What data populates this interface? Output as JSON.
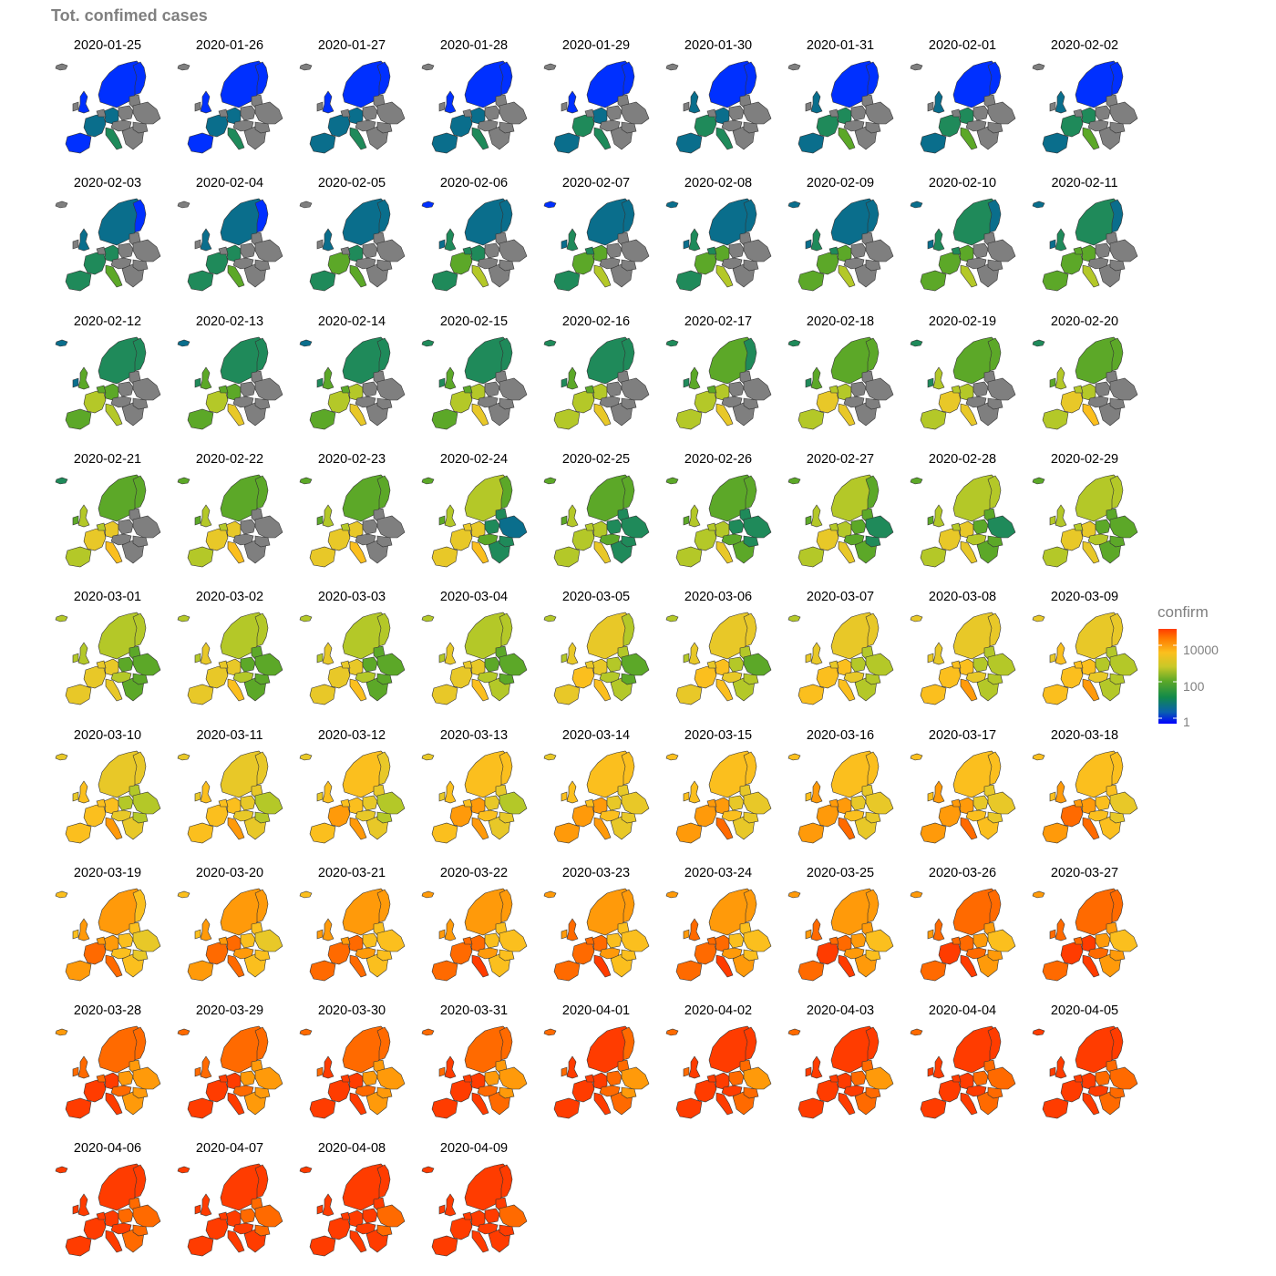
{
  "title": "Tot. confimed cases",
  "legend": {
    "title": "confirm",
    "ticks": [
      "10000",
      "100",
      "1"
    ],
    "tick_values": [
      10000,
      100,
      1
    ],
    "scale": "log10",
    "colors": [
      "#0000ff",
      "#0a6e8c",
      "#3c9a2e",
      "#c8c828",
      "#fbbf1e",
      "#ff6a00",
      "#ff3c00"
    ],
    "na_color": "#7f7f7f"
  },
  "chart_data": {
    "type": "choropleth-small-multiples",
    "title": "Tot. confimed cases",
    "legend_title": "confirm",
    "legend_placement": "right",
    "legend_scale": "log10",
    "legend_range": [
      1,
      20000
    ],
    "dates": [
      "2020-01-25",
      "2020-01-26",
      "2020-01-27",
      "2020-01-28",
      "2020-01-29",
      "2020-01-30",
      "2020-01-31",
      "2020-02-01",
      "2020-02-02",
      "2020-02-03",
      "2020-02-04",
      "2020-02-05",
      "2020-02-06",
      "2020-02-07",
      "2020-02-08",
      "2020-02-09",
      "2020-02-10",
      "2020-02-11",
      "2020-02-12",
      "2020-02-13",
      "2020-02-14",
      "2020-02-15",
      "2020-02-16",
      "2020-02-17",
      "2020-02-18",
      "2020-02-19",
      "2020-02-20",
      "2020-02-21",
      "2020-02-22",
      "2020-02-23",
      "2020-02-24",
      "2020-02-25",
      "2020-02-26",
      "2020-02-27",
      "2020-02-28",
      "2020-02-29",
      "2020-03-01",
      "2020-03-02",
      "2020-03-03",
      "2020-03-04",
      "2020-03-05",
      "2020-03-06",
      "2020-03-07",
      "2020-03-08",
      "2020-03-09",
      "2020-03-10",
      "2020-03-11",
      "2020-03-12",
      "2020-03-13",
      "2020-03-14",
      "2020-03-15",
      "2020-03-16",
      "2020-03-17",
      "2020-03-18",
      "2020-03-19",
      "2020-03-20",
      "2020-03-21",
      "2020-03-22",
      "2020-03-23",
      "2020-03-24",
      "2020-03-25",
      "2020-03-26",
      "2020-03-27",
      "2020-03-28",
      "2020-03-29",
      "2020-03-30",
      "2020-03-31",
      "2020-04-01",
      "2020-04-02",
      "2020-04-03",
      "2020-04-04",
      "2020-04-05",
      "2020-04-06",
      "2020-04-07",
      "2020-04-08",
      "2020-04-09"
    ]
  }
}
